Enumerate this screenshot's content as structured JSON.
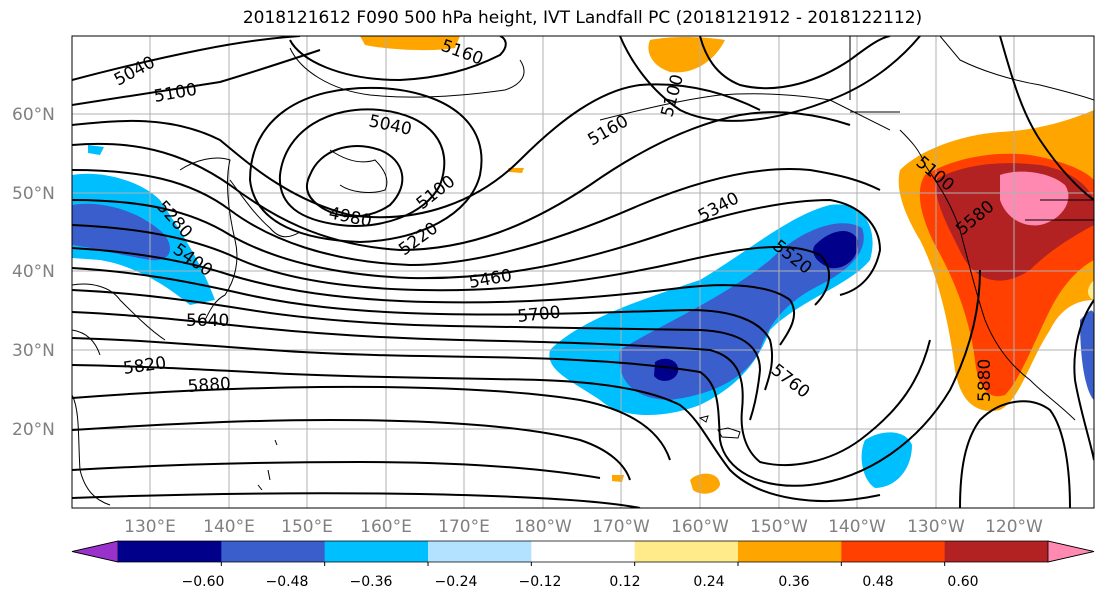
{
  "title": "2018121612 F090 500 hPa height, IVT Landfall PC (2018121912 - 2018122112)",
  "lat_labels": [
    "60°N",
    "50°N",
    "40°N",
    "30°N",
    "20°N"
  ],
  "lon_labels": [
    "130°E",
    "140°E",
    "150°E",
    "160°E",
    "170°E",
    "180°W",
    "170°W",
    "160°W",
    "150°W",
    "140°W",
    "130°W",
    "120°W"
  ],
  "contour_labels": [
    "5040",
    "5100",
    "5040",
    "5160",
    "5100",
    "4980",
    "5100",
    "5220",
    "5280",
    "5400",
    "5340",
    "5460",
    "5520",
    "5580",
    "5640",
    "5700",
    "5760",
    "5820",
    "5880",
    "5880",
    "5100",
    "5160"
  ],
  "colorbar": {
    "ticks": [
      "−0.60",
      "−0.48",
      "−0.36",
      "−0.24",
      "−0.12",
      "0.12",
      "0.24",
      "0.36",
      "0.48",
      "0.60"
    ],
    "colors": [
      "#9932CC",
      "#00008B",
      "#3A5FCD",
      "#00BFFF",
      "#B2E2FF",
      "#FFFFFF",
      "#FFEB8A",
      "#FFA500",
      "#FF4000",
      "#B22222",
      "#FF89B0"
    ]
  }
}
